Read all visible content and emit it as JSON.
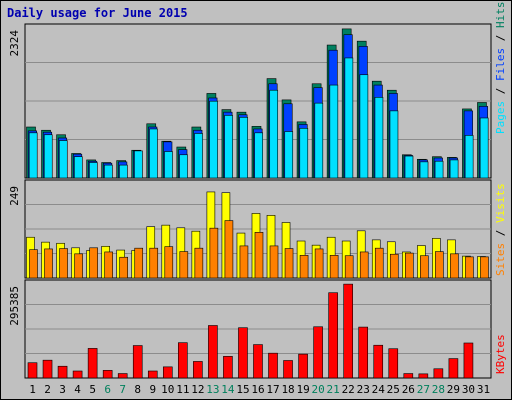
{
  "chart_data": [
    {
      "type": "bar",
      "title": "Daily usage for June 2015",
      "categories": [
        "1",
        "2",
        "3",
        "4",
        "5",
        "6",
        "7",
        "8",
        "9",
        "10",
        "11",
        "12",
        "13",
        "14",
        "15",
        "16",
        "17",
        "18",
        "19",
        "20",
        "21",
        "22",
        "23",
        "24",
        "25",
        "26",
        "27",
        "28",
        "29",
        "30",
        "31"
      ],
      "weekend_days": [
        "6",
        "7",
        "13",
        "14",
        "20",
        "21",
        "27",
        "28"
      ],
      "ymax_label": "2324",
      "ylim": [
        0,
        2324
      ],
      "right_labels": [
        "Pages",
        "Files",
        "Hits"
      ],
      "series": [
        {
          "name": "Hits",
          "color": "#008060",
          "values": [
            790,
            740,
            670,
            380,
            280,
            240,
            270,
            430,
            840,
            570,
            480,
            790,
            1310,
            1060,
            1020,
            800,
            1540,
            1210,
            870,
            1460,
            2060,
            2310,
            2120,
            1500,
            1360,
            360,
            290,
            330,
            320,
            1070,
            1170
          ]
        },
        {
          "name": "Files",
          "color": "#0040ff",
          "values": [
            730,
            710,
            620,
            370,
            260,
            230,
            250,
            420,
            790,
            560,
            440,
            740,
            1240,
            1020,
            980,
            760,
            1460,
            1150,
            830,
            1400,
            1980,
            2220,
            2040,
            1440,
            1310,
            350,
            280,
            310,
            310,
            1040,
            1110
          ]
        },
        {
          "name": "Pages",
          "color": "#00e0ff",
          "values": [
            700,
            670,
            580,
            330,
            240,
            200,
            200,
            420,
            760,
            410,
            360,
            690,
            1190,
            970,
            940,
            700,
            1360,
            720,
            770,
            1160,
            1440,
            1860,
            1600,
            1250,
            1040,
            340,
            250,
            260,
            280,
            660,
            930
          ]
        }
      ]
    },
    {
      "type": "bar",
      "ymax_label": "249",
      "ylim": [
        0,
        249
      ],
      "right_labels": [
        "Sites",
        "Visits"
      ],
      "series": [
        {
          "name": "Visits",
          "color": "#ffff00",
          "values": [
            108,
            95,
            92,
            80,
            73,
            84,
            74,
            73,
            136,
            140,
            133,
            124,
            228,
            226,
            119,
            171,
            166,
            147,
            98,
            87,
            108,
            98,
            125,
            101,
            96,
            69,
            86,
            105,
            101,
            58,
            57
          ]
        },
        {
          "name": "Sites",
          "color": "#ff8000",
          "values": [
            75,
            77,
            78,
            64,
            80,
            69,
            55,
            79,
            79,
            83,
            70,
            79,
            132,
            152,
            85,
            121,
            85,
            78,
            60,
            77,
            60,
            59,
            69,
            79,
            63,
            66,
            59,
            70,
            64,
            56,
            56
          ]
        }
      ]
    },
    {
      "type": "bar",
      "ymax_label": "295385",
      "ylim": [
        0,
        295385
      ],
      "right_labels": [
        "KBytes"
      ],
      "series": [
        {
          "name": "KBytes",
          "color": "#ff0000",
          "values": [
            48000,
            56000,
            37000,
            22000,
            93000,
            24000,
            14000,
            102000,
            22000,
            35000,
            111000,
            52000,
            165000,
            68000,
            158000,
            105000,
            78000,
            55000,
            75000,
            161000,
            268000,
            295000,
            160000,
            103000,
            92000,
            14000,
            13000,
            29000,
            61000,
            110000,
            0
          ]
        }
      ]
    }
  ],
  "colors": {
    "weekday_label": "#000000",
    "weekend_label": "#00805c",
    "plot_bg": "#c0c0c0",
    "gridline": "#8c8c8c"
  }
}
